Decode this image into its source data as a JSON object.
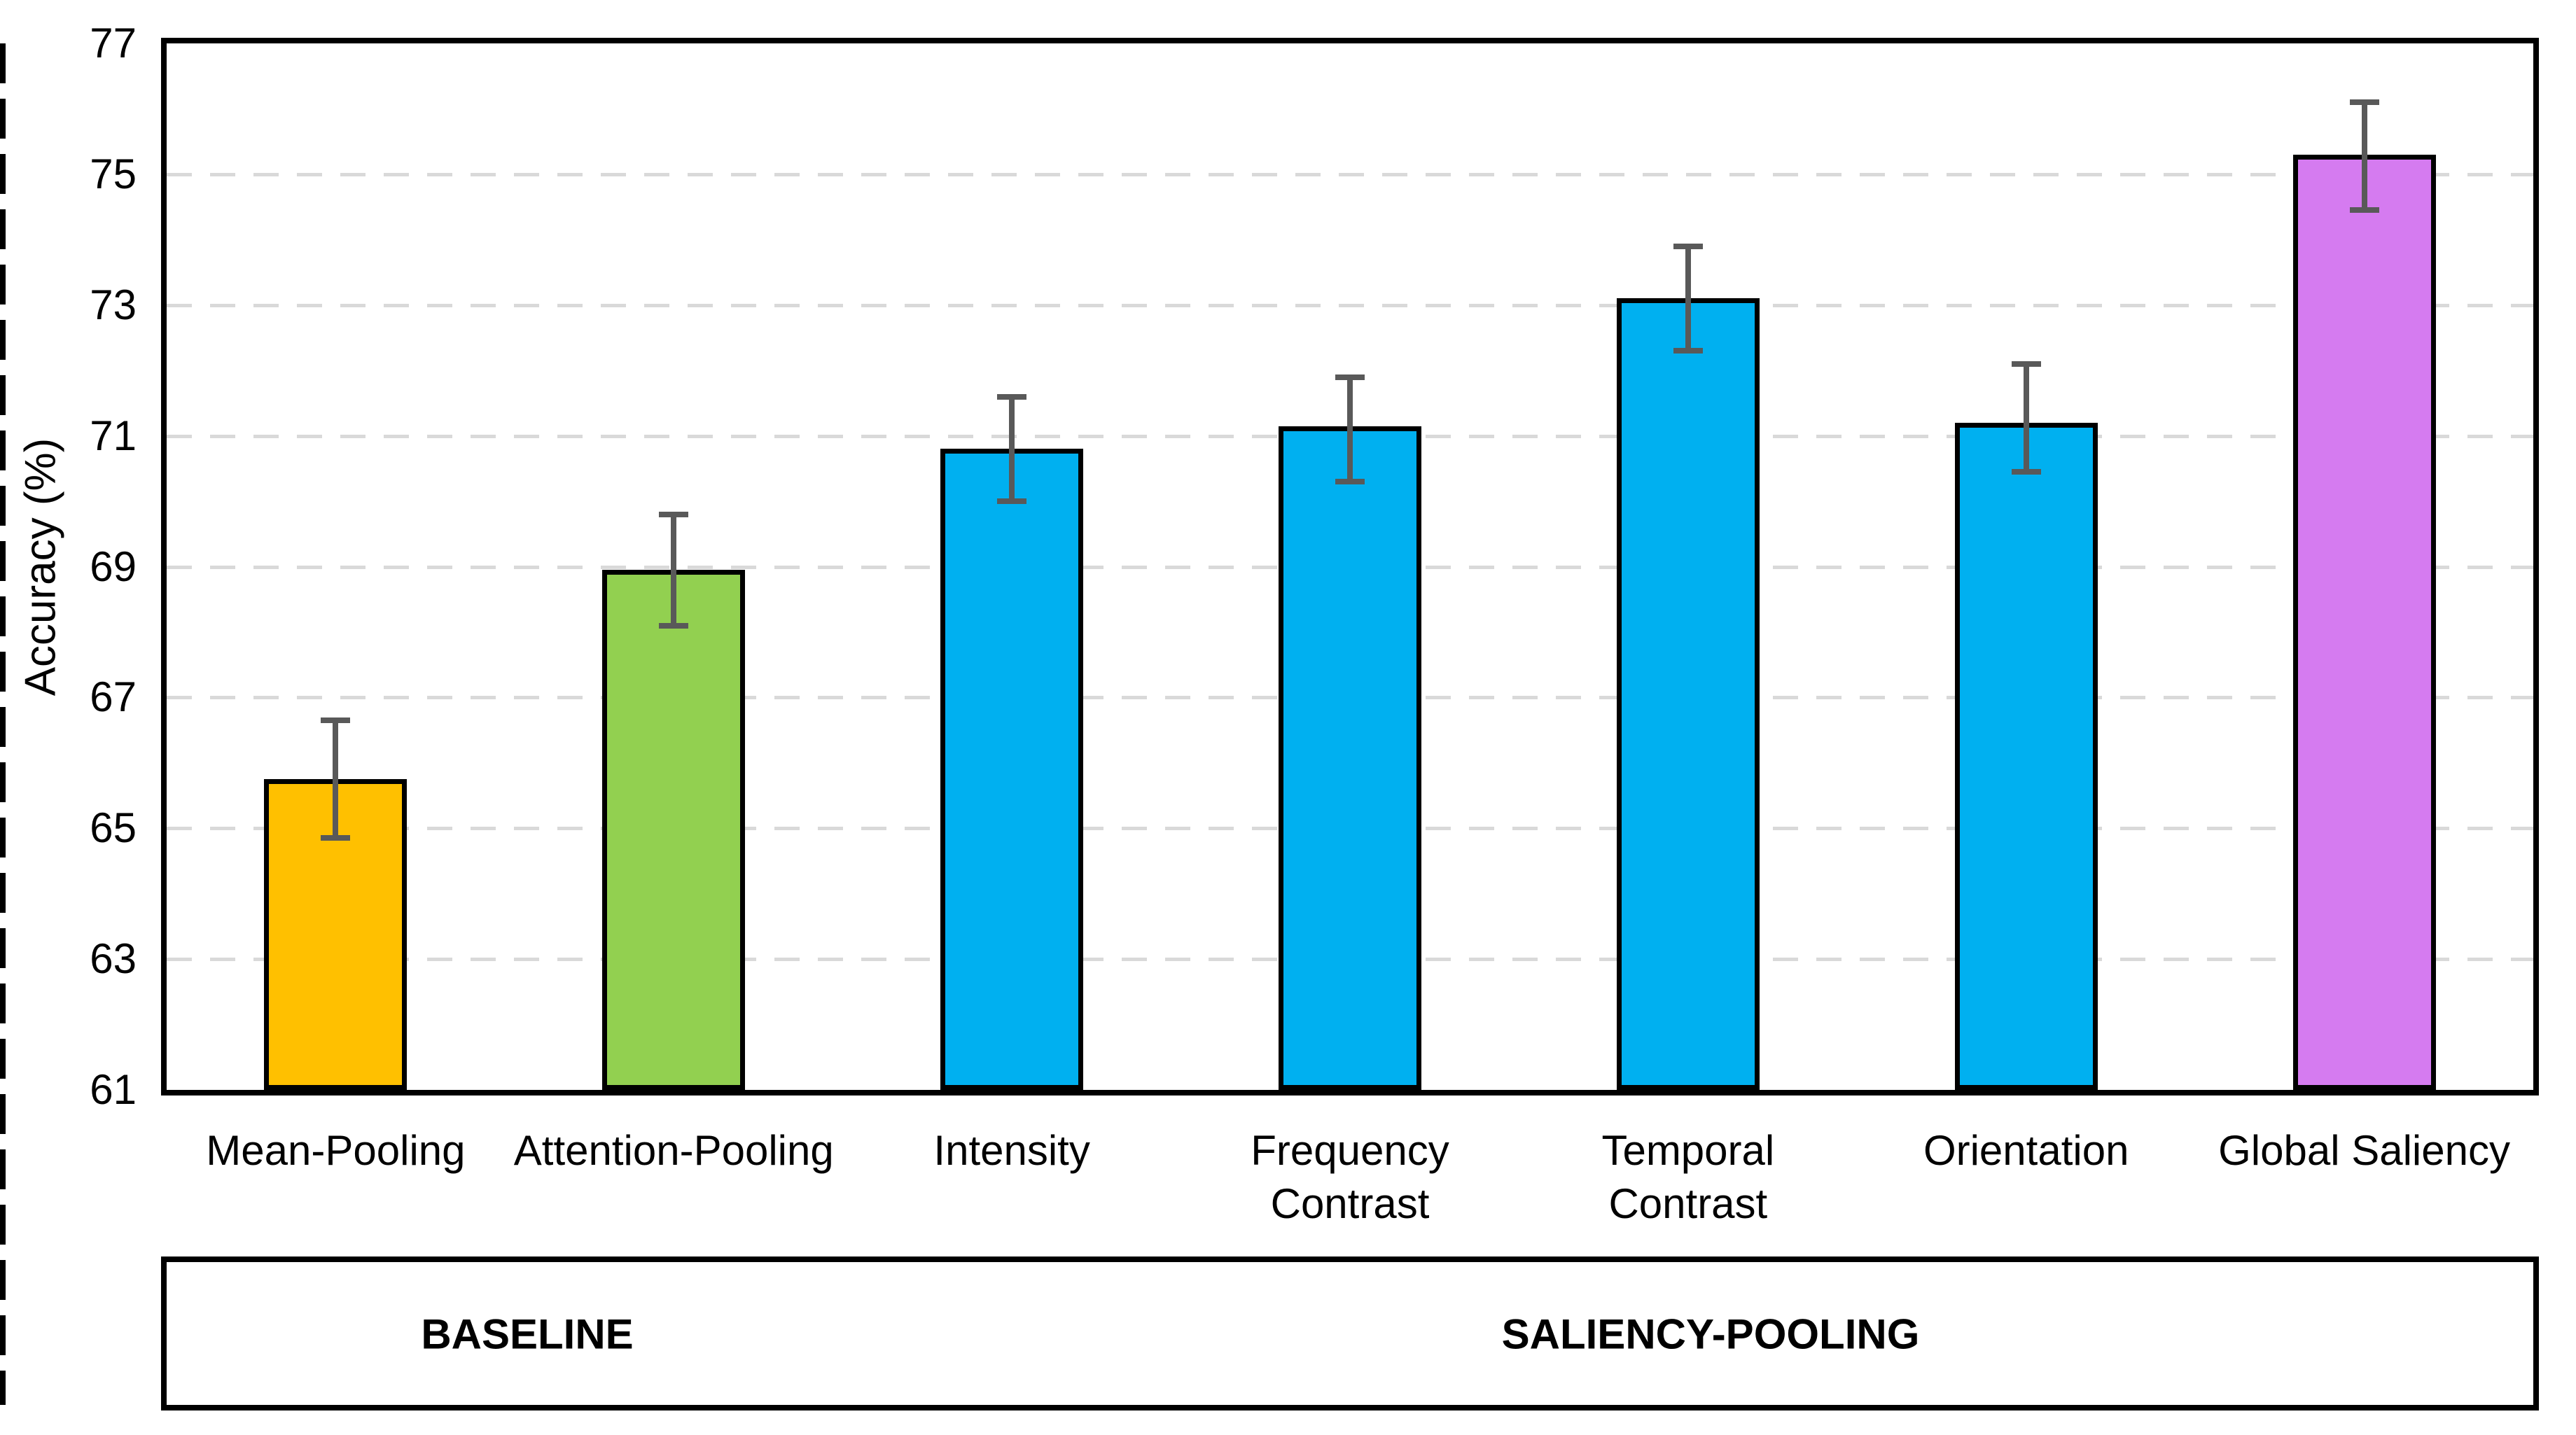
{
  "figure": {
    "background": "#FFFFFF"
  },
  "chart_data": {
    "type": "bar",
    "title": "",
    "xlabel": "",
    "ylabel": "Accuracy (%)",
    "ylim": [
      61,
      77
    ],
    "yticks": [
      61,
      63,
      65,
      67,
      69,
      71,
      73,
      75,
      77
    ],
    "grid": "horizontal dashed gridlines at each tick between 61 and 77",
    "legend": "none",
    "categories": [
      [
        "Mean-Pooling"
      ],
      [
        "Attention-Pooling"
      ],
      [
        "Intensity"
      ],
      [
        "Frequency",
        "Contrast"
      ],
      [
        "Temporal",
        "Contrast"
      ],
      [
        "Orientation"
      ],
      [
        "Global Saliency"
      ]
    ],
    "values": [
      65.75,
      68.95,
      70.8,
      71.15,
      73.1,
      71.2,
      75.3
    ],
    "error_high": [
      66.65,
      69.8,
      71.6,
      71.9,
      73.9,
      72.1,
      76.1
    ],
    "error_low": [
      64.85,
      68.1,
      70.0,
      70.3,
      72.3,
      70.45,
      74.45
    ],
    "bar_colors": [
      "#FFC000",
      "#92D050",
      "#00B0F0",
      "#00B0F0",
      "#00B0F0",
      "#00B0F0",
      "#D57BF0"
    ],
    "bar_edge_color": "#000000",
    "error_bar_color": "#595959",
    "gridline_color": "#D9D9D9",
    "axis_color": "#000000",
    "groups": [
      {
        "label": "BASELINE",
        "span": [
          0,
          2
        ]
      },
      {
        "label": "SALIENCY-POOLING",
        "span": [
          2,
          7
        ]
      }
    ],
    "separator": "dashed vertical line between Attention-Pooling and Intensity"
  }
}
